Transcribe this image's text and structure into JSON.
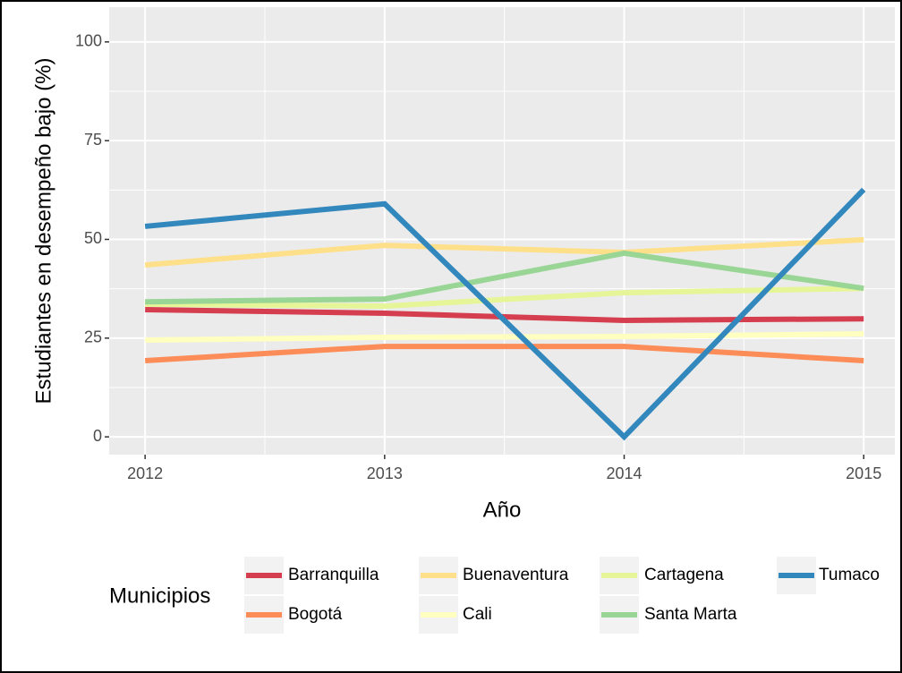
{
  "chart_data": {
    "type": "line",
    "x_label": "Año",
    "y_label": "Estudiantes en desempeño bajo (%)",
    "x": [
      2012,
      2013,
      2014,
      2015
    ],
    "xlim": [
      2011.85,
      2015.13
    ],
    "xticks": [
      2012,
      2013,
      2014,
      2015
    ],
    "ylim": [
      -4.5,
      108.8
    ],
    "yticks": [
      0,
      25,
      50,
      75,
      100
    ],
    "grid": true,
    "legend_title": "Municipios",
    "legend_position": "bottom",
    "series": [
      {
        "name": "Barranquilla",
        "color": "#d53e4f",
        "values": [
          32.2,
          31.3,
          29.5,
          29.9
        ]
      },
      {
        "name": "Bogotá",
        "color": "#fc8d59",
        "values": [
          19.3,
          22.9,
          22.9,
          19.3
        ]
      },
      {
        "name": "Buenaventura",
        "color": "#fee08b",
        "values": [
          43.5,
          48.5,
          46.7,
          49.9
        ]
      },
      {
        "name": "Cali",
        "color": "#ffffbf",
        "values": [
          24.5,
          25.2,
          25.4,
          26.1
        ]
      },
      {
        "name": "Cartagena",
        "color": "#e6f598",
        "values": [
          33.6,
          33.1,
          36.5,
          37.6
        ]
      },
      {
        "name": "Santa Marta",
        "color": "#99d594",
        "values": [
          34.2,
          34.9,
          46.5,
          37.6
        ]
      },
      {
        "name": "Tumaco",
        "color": "#3288bd",
        "values": [
          53.3,
          59,
          0,
          62.6
        ]
      }
    ]
  }
}
